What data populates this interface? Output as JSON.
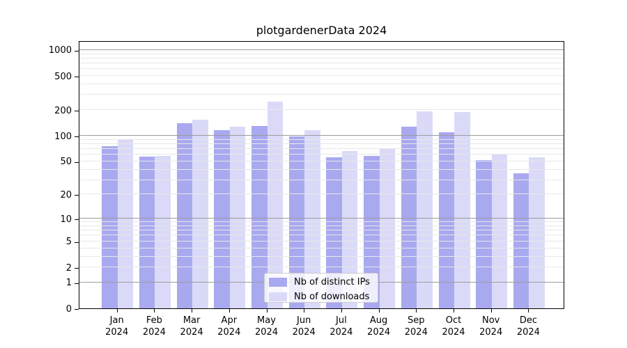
{
  "title": "plotgardenerData 2024",
  "legend": {
    "items": [
      {
        "label": "Nb of distinct IPs",
        "series": "ips"
      },
      {
        "label": "Nb of downloads",
        "series": "downloads"
      }
    ]
  },
  "colors": {
    "ips": "#a9a9f0",
    "downloads": "#dadaf8",
    "grid_major": "#9b9b9b",
    "grid_minor": "#e7e7e7",
    "axis": "#000000",
    "legend_border": "#cccccc",
    "legend_bg": "rgba(255,255,255,0.8)"
  },
  "y_axis": {
    "ticks": [
      {
        "value": 1000,
        "label": "1000"
      },
      {
        "value": 500,
        "label": "500"
      },
      {
        "value": 200,
        "label": "200"
      },
      {
        "value": 100,
        "label": "100"
      },
      {
        "value": 50,
        "label": "50"
      },
      {
        "value": 20,
        "label": "20"
      },
      {
        "value": 10,
        "label": "10"
      },
      {
        "value": 5,
        "label": "5"
      },
      {
        "value": 2,
        "label": "2"
      },
      {
        "value": 1,
        "label": "1"
      },
      {
        "value": 0,
        "label": "0"
      }
    ],
    "major_grid_values": [
      1,
      10,
      100,
      1000
    ],
    "minor_grid_values": [
      2,
      3,
      4,
      5,
      6,
      7,
      8,
      9,
      20,
      30,
      40,
      50,
      60,
      70,
      80,
      90,
      200,
      300,
      400,
      500,
      600,
      700,
      800,
      900
    ]
  },
  "x_axis": {
    "months": [
      {
        "month": "Jan",
        "year": "2024"
      },
      {
        "month": "Feb",
        "year": "2024"
      },
      {
        "month": "Mar",
        "year": "2024"
      },
      {
        "month": "Apr",
        "year": "2024"
      },
      {
        "month": "May",
        "year": "2024"
      },
      {
        "month": "Jun",
        "year": "2024"
      },
      {
        "month": "Jul",
        "year": "2024"
      },
      {
        "month": "Aug",
        "year": "2024"
      },
      {
        "month": "Sep",
        "year": "2024"
      },
      {
        "month": "Oct",
        "year": "2024"
      },
      {
        "month": "Nov",
        "year": "2024"
      },
      {
        "month": "Dec",
        "year": "2024"
      }
    ]
  },
  "chart_data": {
    "type": "bar",
    "categories": [
      "Jan 2024",
      "Feb 2024",
      "Mar 2024",
      "Apr 2024",
      "May 2024",
      "Jun 2024",
      "Jul 2024",
      "Aug 2024",
      "Sep 2024",
      "Oct 2024",
      "Nov 2024",
      "Dec 2024"
    ],
    "series": [
      {
        "name": "Nb of distinct IPs",
        "values": [
          76,
          57,
          141,
          117,
          130,
          98,
          56,
          58,
          128,
          111,
          52,
          36
        ]
      },
      {
        "name": "Nb of downloads",
        "values": [
          91,
          58,
          155,
          127,
          252,
          117,
          66,
          70,
          194,
          190,
          61,
          56
        ]
      }
    ],
    "title": "plotgardenerData 2024",
    "xlabel": "",
    "ylabel": "",
    "y_scale": "log10(value+1)",
    "y_ticks": [
      0,
      1,
      2,
      5,
      10,
      20,
      50,
      100,
      200,
      500,
      1000
    ],
    "ylim": [
      0,
      1300
    ],
    "grid": true,
    "legend_position": "inside-bottom-center"
  }
}
